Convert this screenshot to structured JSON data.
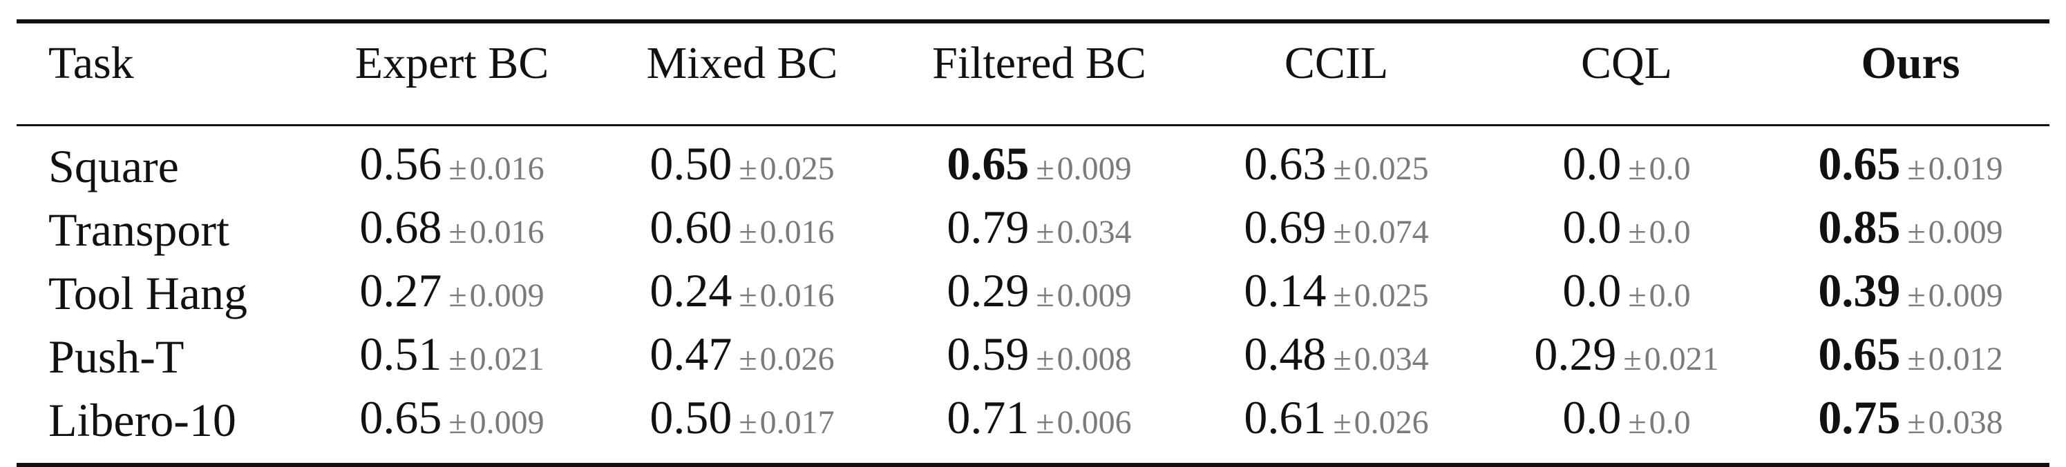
{
  "table": {
    "headers": [
      {
        "label": "Task",
        "bold": false
      },
      {
        "label": "Expert BC",
        "bold": false
      },
      {
        "label": "Mixed BC",
        "bold": false
      },
      {
        "label": "Filtered BC",
        "bold": false
      },
      {
        "label": "CCIL",
        "bold": false
      },
      {
        "label": "CQL",
        "bold": false
      },
      {
        "label": "Ours",
        "bold": true
      }
    ],
    "rows": [
      {
        "task": "Square",
        "cells": [
          {
            "value": "0.56",
            "pm": "±",
            "std": "0.016",
            "best": false
          },
          {
            "value": "0.50",
            "pm": "±",
            "std": "0.025",
            "best": false
          },
          {
            "value": "0.65",
            "pm": "±",
            "std": "0.009",
            "best": true
          },
          {
            "value": "0.63",
            "pm": "±",
            "std": "0.025",
            "best": false
          },
          {
            "value": "0.0",
            "pm": "±",
            "std": "0.0",
            "best": false
          },
          {
            "value": "0.65",
            "pm": "±",
            "std": "0.019",
            "best": true
          }
        ]
      },
      {
        "task": "Transport",
        "cells": [
          {
            "value": "0.68",
            "pm": "±",
            "std": "0.016",
            "best": false
          },
          {
            "value": "0.60",
            "pm": "±",
            "std": "0.016",
            "best": false
          },
          {
            "value": "0.79",
            "pm": "±",
            "std": "0.034",
            "best": false
          },
          {
            "value": "0.69",
            "pm": "±",
            "std": "0.074",
            "best": false
          },
          {
            "value": "0.0",
            "pm": "±",
            "std": "0.0",
            "best": false
          },
          {
            "value": "0.85",
            "pm": "±",
            "std": "0.009",
            "best": true
          }
        ]
      },
      {
        "task": "Tool Hang",
        "cells": [
          {
            "value": "0.27",
            "pm": "±",
            "std": "0.009",
            "best": false
          },
          {
            "value": "0.24",
            "pm": "±",
            "std": "0.016",
            "best": false
          },
          {
            "value": "0.29",
            "pm": "±",
            "std": "0.009",
            "best": false
          },
          {
            "value": "0.14",
            "pm": "±",
            "std": "0.025",
            "best": false
          },
          {
            "value": "0.0",
            "pm": "±",
            "std": "0.0",
            "best": false
          },
          {
            "value": "0.39",
            "pm": "±",
            "std": "0.009",
            "best": true
          }
        ]
      },
      {
        "task": "Push-T",
        "cells": [
          {
            "value": "0.51",
            "pm": "±",
            "std": "0.021",
            "best": false
          },
          {
            "value": "0.47",
            "pm": "±",
            "std": "0.026",
            "best": false
          },
          {
            "value": "0.59",
            "pm": "±",
            "std": "0.008",
            "best": false
          },
          {
            "value": "0.48",
            "pm": "±",
            "std": "0.034",
            "best": false
          },
          {
            "value": "0.29",
            "pm": "±",
            "std": "0.021",
            "best": false
          },
          {
            "value": "0.65",
            "pm": "±",
            "std": "0.012",
            "best": true
          }
        ]
      },
      {
        "task": "Libero-10",
        "cells": [
          {
            "value": "0.65",
            "pm": "±",
            "std": "0.009",
            "best": false
          },
          {
            "value": "0.50",
            "pm": "±",
            "std": "0.017",
            "best": false
          },
          {
            "value": "0.71",
            "pm": "±",
            "std": "0.006",
            "best": false
          },
          {
            "value": "0.61",
            "pm": "±",
            "std": "0.026",
            "best": false
          },
          {
            "value": "0.0",
            "pm": "±",
            "std": "0.0",
            "best": false
          },
          {
            "value": "0.75",
            "pm": "±",
            "std": "0.038",
            "best": true
          }
        ]
      }
    ]
  },
  "colors": {
    "text": "#111111",
    "std_text": "#7a7a7a",
    "rule": "#111111"
  }
}
